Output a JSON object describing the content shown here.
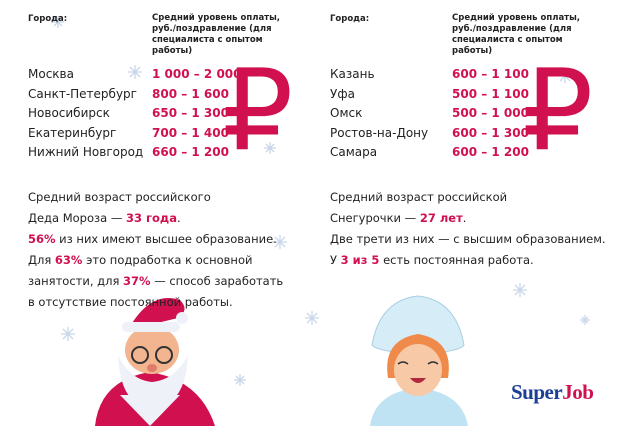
{
  "left": {
    "header": {
      "city": "Города:",
      "pay": "Средний уровень оплаты, руб./поздравление (для специалиста с опытом работы)"
    },
    "rows": [
      [
        "Москва",
        "1 000 – 2 000"
      ],
      [
        "Санкт-Петербург",
        "800 – 1 600"
      ],
      [
        "Новосибирск",
        "650 – 1 300"
      ],
      [
        "Екатеринбург",
        "700 – 1 400"
      ],
      [
        "Нижний Новгород",
        "660 – 1 200"
      ]
    ],
    "currency": "₽",
    "text": [
      [
        "Средний возраст российского"
      ],
      [
        "Деда Мороза — ",
        {
          "text": "33 года",
          "accent": true
        },
        "."
      ],
      [
        {
          "text": "56%",
          "accent": true
        },
        " из них имеют высшее образование."
      ],
      [
        "Для ",
        {
          "text": "63%",
          "accent": true
        },
        " это подработка к основной"
      ],
      [
        "занятости, для ",
        {
          "text": "37%",
          "accent": true
        },
        " — способ заработать"
      ],
      [
        "в отсутствие постоянной работы."
      ]
    ]
  },
  "right": {
    "header": {
      "city": "Города:",
      "pay": "Средний уровень оплаты, руб./поздравление (для специалиста с опытом работы)"
    },
    "rows": [
      [
        "Казань",
        "600 – 1 100"
      ],
      [
        "Уфа",
        "500 – 1 100"
      ],
      [
        "Омск",
        "500 – 1 000"
      ],
      [
        "Ростов-на-Дону",
        "600 – 1 300"
      ],
      [
        "Самара",
        "600 – 1 200"
      ]
    ],
    "currency": "₽",
    "text": [
      [
        "Средний возраст российской"
      ],
      [
        "Снегурочки — ",
        {
          "text": "27 лет",
          "accent": true
        },
        "."
      ],
      [
        "Две трети из них — с высшим образованием."
      ],
      [
        "У ",
        {
          "text": "3 из 5",
          "accent": true
        },
        " есть постоянная работа."
      ]
    ]
  },
  "logo": {
    "super": "Super",
    "job": "Job"
  }
}
